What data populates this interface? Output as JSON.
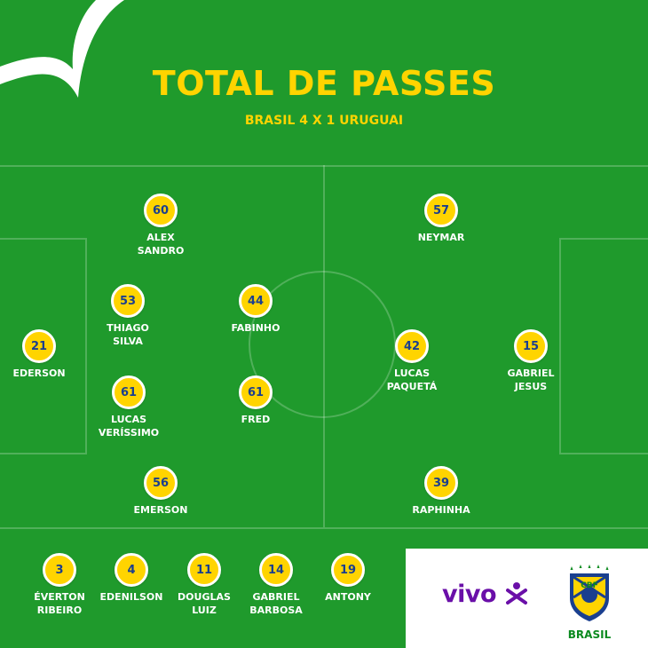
{
  "title": "TOTAL DE PASSES",
  "subtitle": "BRASIL 4 X 1 URUGUAI",
  "starters": [
    {
      "id": "ederson",
      "passes": "21",
      "name": "EDERSON"
    },
    {
      "id": "alex-sandro",
      "passes": "60",
      "name": "ALEX\nSANDRO"
    },
    {
      "id": "thiago-silva",
      "passes": "53",
      "name": "THIAGO\nSILVA"
    },
    {
      "id": "lucas-verissimo",
      "passes": "61",
      "name": "LUCAS\nVERÍSSIMO"
    },
    {
      "id": "emerson",
      "passes": "56",
      "name": "EMERSON"
    },
    {
      "id": "fabinho",
      "passes": "44",
      "name": "FABINHO"
    },
    {
      "id": "fred",
      "passes": "61",
      "name": "FRED"
    },
    {
      "id": "neymar",
      "passes": "57",
      "name": "NEYMAR"
    },
    {
      "id": "lucas-paqueta",
      "passes": "42",
      "name": "LUCAS\nPAQUETÁ"
    },
    {
      "id": "gabriel-jesus",
      "passes": "15",
      "name": "GABRIEL\nJESUS"
    },
    {
      "id": "raphinha",
      "passes": "39",
      "name": "RAPHINHA"
    }
  ],
  "substitutes": [
    {
      "id": "everton-ribeiro",
      "passes": "3",
      "name": "ÉVERTON\nRIBEIRO"
    },
    {
      "id": "edenilson",
      "passes": "4",
      "name": "EDENILSON"
    },
    {
      "id": "douglas-luiz",
      "passes": "11",
      "name": "DOUGLAS\nLUIZ"
    },
    {
      "id": "gabriel-barbosa",
      "passes": "14",
      "name": "GABRIEL\nBARBOSA"
    },
    {
      "id": "antony",
      "passes": "19",
      "name": "ANTONY"
    }
  ],
  "sponsor": {
    "brand": "vivo",
    "crest_text": "CBF",
    "team_word": "BRASIL"
  },
  "colors": {
    "pitch": "#1f9a2c",
    "badge": "#ffd400",
    "number": "#1a3f8f",
    "text": "#ffffff",
    "sponsor": "#6a0fa8"
  }
}
